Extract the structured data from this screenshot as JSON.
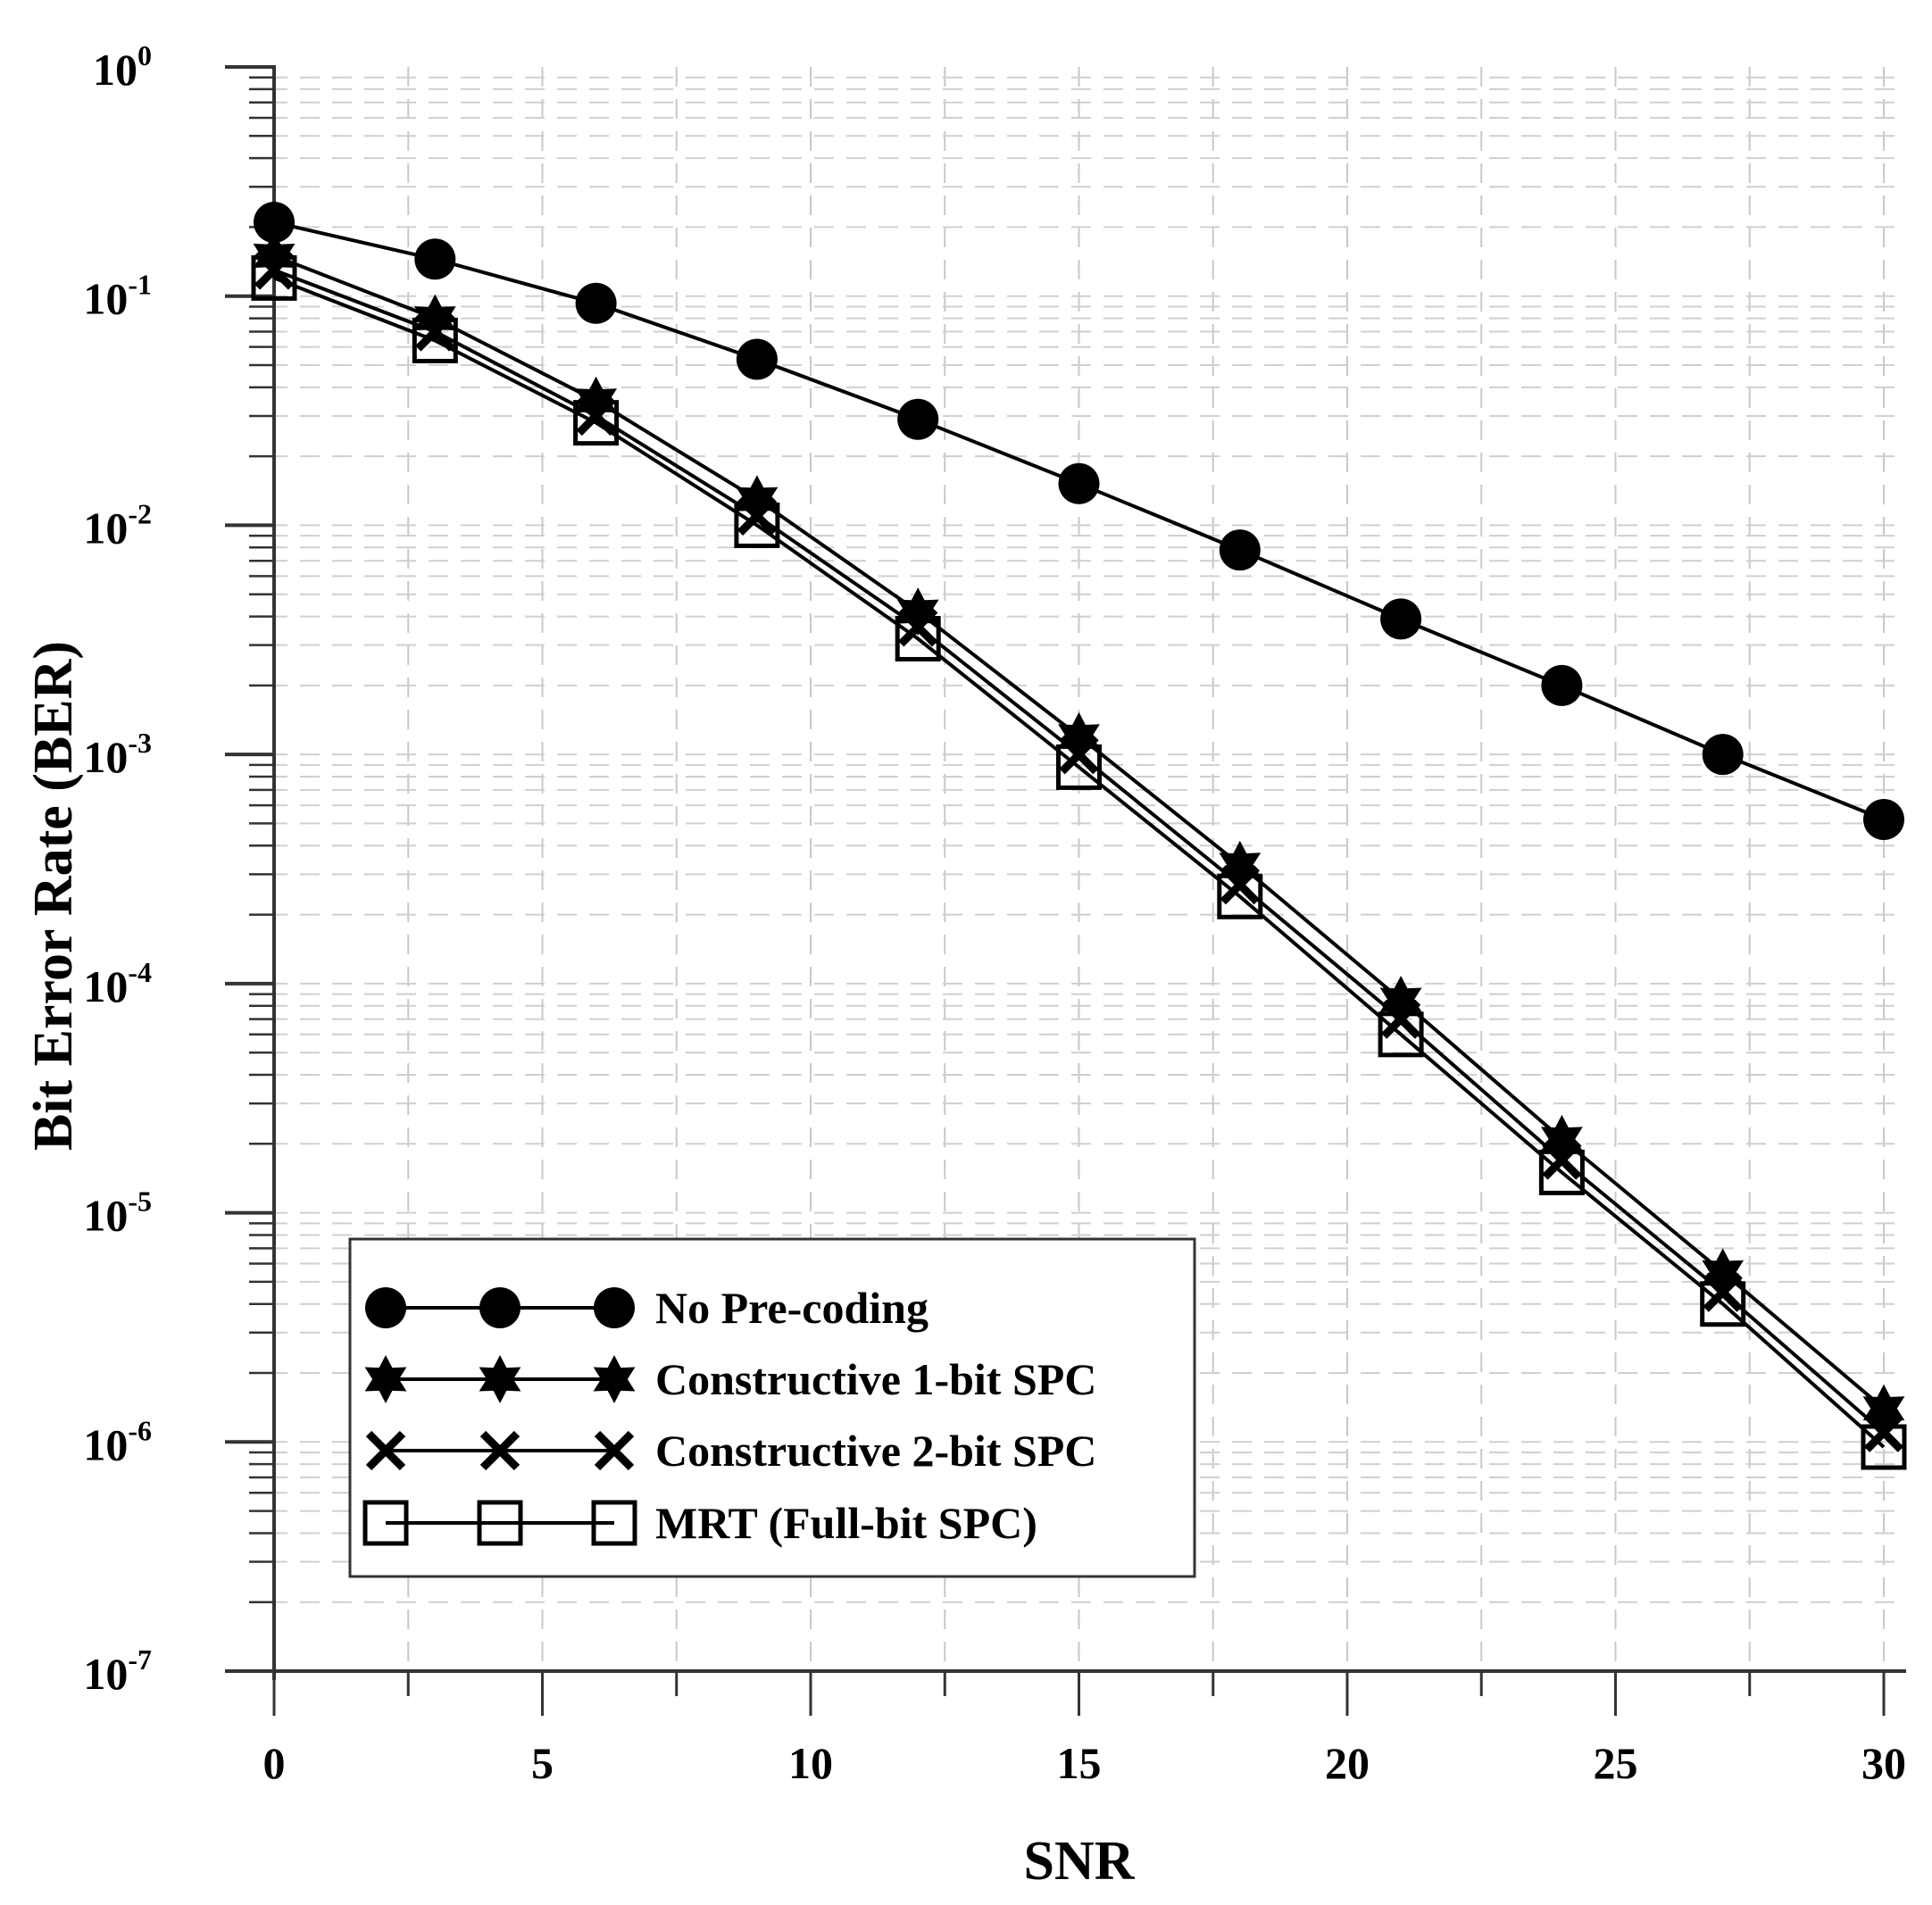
{
  "chart_data": {
    "type": "line",
    "title": "",
    "xlabel": "SNR",
    "ylabel": "Bit Error Rate (BER)",
    "yscale": "log",
    "xlim": [
      -1,
      31
    ],
    "ylim_exponents": [
      -7,
      0
    ],
    "x_ticks": [
      0,
      5,
      10,
      15,
      20,
      25,
      30
    ],
    "x_tick_labels": [
      "0",
      "5",
      "10",
      "15",
      "20",
      "25",
      "30"
    ],
    "y_tick_base": "10",
    "y_tick_exponents": [
      "0",
      "-1",
      "-2",
      "-3",
      "-4",
      "-5",
      "-6",
      "-7"
    ],
    "grid": true,
    "legend_position": "bottom-left",
    "x": [
      0,
      3,
      6,
      9,
      12,
      15,
      18,
      21,
      24,
      27,
      30
    ],
    "series": [
      {
        "name": "No Pre-coding",
        "marker": "filled-circle",
        "values": [
          0.21,
          0.145,
          0.093,
          0.053,
          0.029,
          0.0152,
          0.0078,
          0.0039,
          0.002,
          0.001,
          0.00052
        ]
      },
      {
        "name": "Constructive 1-bit SPC",
        "marker": "filled-star",
        "values": [
          0.15,
          0.08,
          0.035,
          0.013,
          0.0042,
          0.0012,
          0.00033,
          8.5e-05,
          2.1e-05,
          5.5e-06,
          1.4e-06
        ]
      },
      {
        "name": "Constructive 2-bit SPC",
        "marker": "x-cross",
        "values": [
          0.13,
          0.07,
          0.03,
          0.011,
          0.0036,
          0.001,
          0.00027,
          7e-05,
          1.7e-05,
          4.5e-06,
          1.1e-06
        ]
      },
      {
        "name": "MRT (Full-bit SPC)",
        "marker": "open-square",
        "values": [
          0.12,
          0.064,
          0.028,
          0.01,
          0.0032,
          0.00088,
          0.00024,
          6e-05,
          1.5e-05,
          4e-06,
          9.5e-07
        ]
      }
    ]
  }
}
